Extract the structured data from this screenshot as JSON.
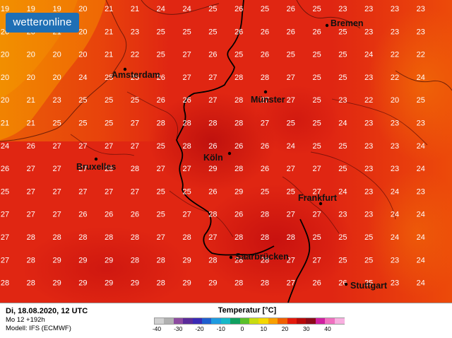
{
  "logo": {
    "text": "wetteronline"
  },
  "footer": {
    "date_line": "Di, 18.08.2020, 12 UTC",
    "run_line": "Mo 12 +192h",
    "model_line": "Modell: IFS (ECMWF)",
    "legend_title": "Temperatur [°C]",
    "ticks": [
      "-40",
      "-30",
      "-20",
      "-10",
      "0",
      "10",
      "20",
      "30",
      "40"
    ],
    "scale_colors": [
      "#d0d0d0",
      "#b0b0b0",
      "#8c4aa0",
      "#5a2a9a",
      "#3a2ab5",
      "#1f5fcf",
      "#1e9be0",
      "#16b9c8",
      "#10a060",
      "#5ac02a",
      "#c8dc10",
      "#f4d800",
      "#f8a000",
      "#f06000",
      "#e41a0c",
      "#b80a0a",
      "#8c0a18",
      "#d020a0",
      "#f070c0",
      "#f8b0e0"
    ]
  },
  "cities": [
    {
      "name": "Bremen"
    },
    {
      "name": "Amsterdam"
    },
    {
      "name": "Münster"
    },
    {
      "name": "Köln"
    },
    {
      "name": "Bruxelles"
    },
    {
      "name": "Frankfurt"
    },
    {
      "name": "Saarbrücken"
    },
    {
      "name": "Stuttgart"
    }
  ],
  "grid_values": [
    [
      "19",
      "19",
      "19",
      "20",
      "21",
      "21",
      "24",
      "24",
      "25",
      "26",
      "25",
      "26",
      "25",
      "23",
      "23",
      "23",
      "23"
    ],
    [
      "20",
      "20",
      "21",
      "20",
      "21",
      "23",
      "25",
      "25",
      "25",
      "26",
      "26",
      "26",
      "26",
      "25",
      "23",
      "23",
      "23"
    ],
    [
      "20",
      "20",
      "20",
      "20",
      "21",
      "22",
      "25",
      "27",
      "26",
      "25",
      "26",
      "25",
      "25",
      "25",
      "24",
      "22",
      "22"
    ],
    [
      "20",
      "20",
      "20",
      "24",
      "25",
      "25",
      "26",
      "27",
      "27",
      "28",
      "28",
      "27",
      "25",
      "25",
      "23",
      "22",
      "24"
    ],
    [
      "20",
      "21",
      "23",
      "25",
      "25",
      "25",
      "26",
      "26",
      "27",
      "28",
      "27",
      "27",
      "25",
      "23",
      "22",
      "20",
      "25"
    ],
    [
      "21",
      "21",
      "25",
      "25",
      "25",
      "27",
      "28",
      "28",
      "28",
      "28",
      "27",
      "25",
      "25",
      "24",
      "23",
      "23",
      "23"
    ],
    [
      "24",
      "26",
      "27",
      "27",
      "27",
      "27",
      "25",
      "28",
      "26",
      "26",
      "26",
      "24",
      "25",
      "25",
      "23",
      "23",
      "24"
    ],
    [
      "26",
      "27",
      "27",
      "27",
      "28",
      "28",
      "27",
      "27",
      "29",
      "28",
      "26",
      "27",
      "27",
      "25",
      "23",
      "23",
      "24"
    ],
    [
      "25",
      "27",
      "27",
      "27",
      "27",
      "27",
      "25",
      "25",
      "26",
      "29",
      "25",
      "25",
      "27",
      "24",
      "23",
      "24",
      "23"
    ],
    [
      "27",
      "27",
      "27",
      "26",
      "26",
      "26",
      "25",
      "27",
      "28",
      "26",
      "28",
      "27",
      "27",
      "23",
      "23",
      "24",
      "24"
    ],
    [
      "27",
      "28",
      "28",
      "28",
      "28",
      "28",
      "27",
      "28",
      "27",
      "28",
      "28",
      "28",
      "25",
      "25",
      "25",
      "24",
      "24"
    ],
    [
      "27",
      "28",
      "29",
      "29",
      "29",
      "28",
      "28",
      "29",
      "28",
      "28",
      "28",
      "27",
      "27",
      "25",
      "25",
      "23",
      "24"
    ],
    [
      "28",
      "28",
      "29",
      "29",
      "29",
      "29",
      "28",
      "29",
      "29",
      "28",
      "28",
      "27",
      "26",
      "26",
      "25",
      "23",
      "24"
    ]
  ]
}
